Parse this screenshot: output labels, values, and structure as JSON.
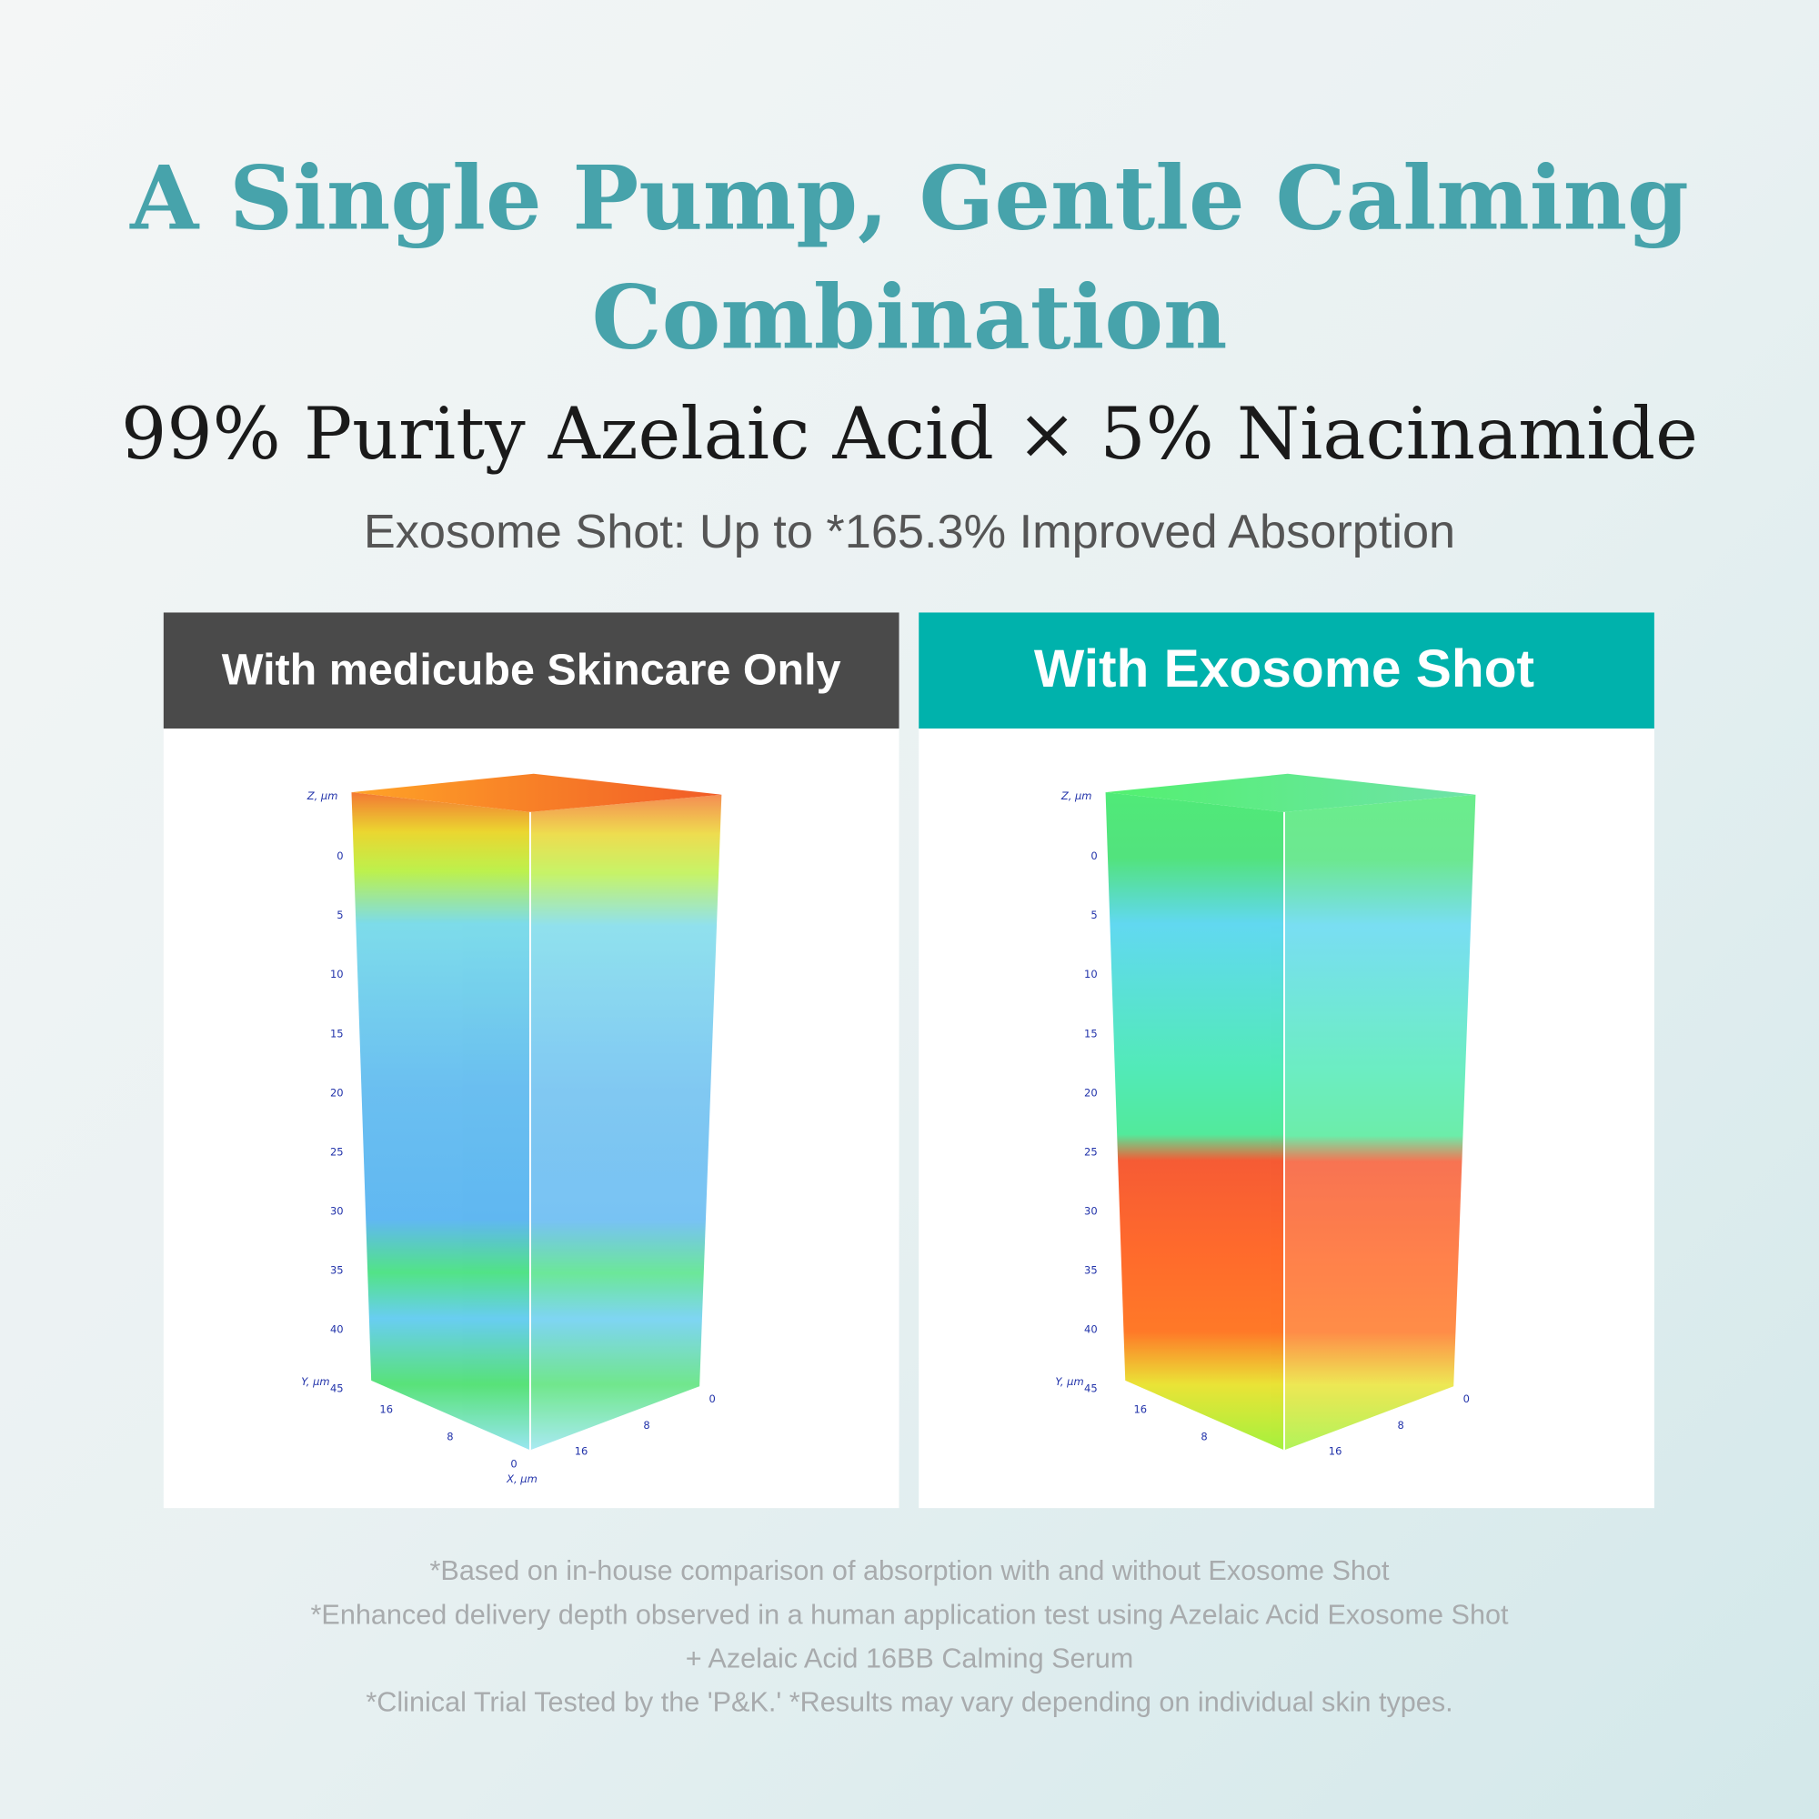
{
  "header": {
    "title_lines": [
      "A Single Pump, Gentle Calming",
      "Combination"
    ],
    "subtitle": "99% Purity Azelaic Acid × 5% Niacinamide",
    "tagline": "Exosome Shot: Up to *165.3% Improved Absorption"
  },
  "panels": [
    {
      "label": "With medicube Skincare Only",
      "z_axis_label": "Z, µm",
      "z_ticks": [
        "0",
        "5",
        "10",
        "15",
        "20",
        "25",
        "30",
        "35",
        "40",
        "45"
      ],
      "y_axis_label": "Y, µm",
      "y_ticks": [
        "16",
        "8",
        "0"
      ],
      "x_ticks": [
        "0",
        "8",
        "16"
      ],
      "x_axis_label": "X, µm"
    },
    {
      "label": "With Exosome Shot",
      "z_axis_label": "Z, µm",
      "z_ticks": [
        "0",
        "5",
        "10",
        "15",
        "20",
        "25",
        "30",
        "35",
        "40",
        "45"
      ],
      "y_axis_label": "Y, µm",
      "y_ticks": [
        "16",
        "8"
      ],
      "x_ticks": [
        "0",
        "8",
        "16"
      ]
    }
  ],
  "footnotes": [
    "*Based on in-house comparison of absorption with and without Exosome Shot",
    "*Enhanced delivery depth observed in a human application test using Azelaic Acid Exosome Shot",
    "+ Azelaic Acid 16BB Calming Serum",
    "*Clinical Trial Tested by the 'P&K.' *Results may vary depending on individual skin types."
  ]
}
